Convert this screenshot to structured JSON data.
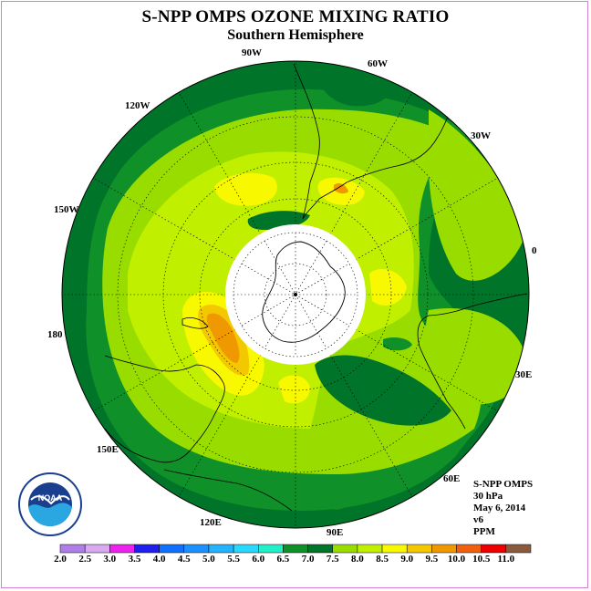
{
  "title": "S-NPP OMPS OZONE MIXING RATIO",
  "subtitle": "Southern Hemisphere",
  "longitude_labels": {
    "lon_90w": "90W",
    "lon_60w": "60W",
    "lon_120w": "120W",
    "lon_30w": "30W",
    "lon_150w": "150W",
    "lon_0": "0",
    "lon_180": "180",
    "lon_30e": "30E",
    "lon_150e": "150E",
    "lon_60e": "60E",
    "lon_120e": "120E",
    "lon_90e": "90E"
  },
  "info": {
    "product": "S-NPP OMPS",
    "level": "30 hPa",
    "date": "May 6, 2014",
    "version": "v6",
    "units": "PPM"
  },
  "logo_text": "NOAA",
  "colorbar": {
    "labels": [
      "2.0",
      "2.5",
      "3.0",
      "3.5",
      "4.0",
      "4.5",
      "5.0",
      "5.5",
      "6.0",
      "6.5",
      "7.0",
      "7.5",
      "8.0",
      "8.5",
      "9.0",
      "9.5",
      "10.0",
      "10.5",
      "11.0"
    ],
    "colors": [
      "#b07ee8",
      "#d8a8f0",
      "#ee22ee",
      "#2020ee",
      "#1070ff",
      "#1c90ff",
      "#24b4ff",
      "#28d8ff",
      "#20f0c8",
      "#109028",
      "#007428",
      "#99dd00",
      "#c0f000",
      "#f8f800",
      "#f4c800",
      "#f09800",
      "#f06010",
      "#ee0000",
      "#8a5a3c"
    ]
  },
  "map_colors": {
    "dark_green": "#007428",
    "green": "#109028",
    "light_green": "#99dd00",
    "yellow_green": "#c0f000",
    "yellow": "#f8f800",
    "orange": "#f09800",
    "gold": "#f4c800"
  }
}
